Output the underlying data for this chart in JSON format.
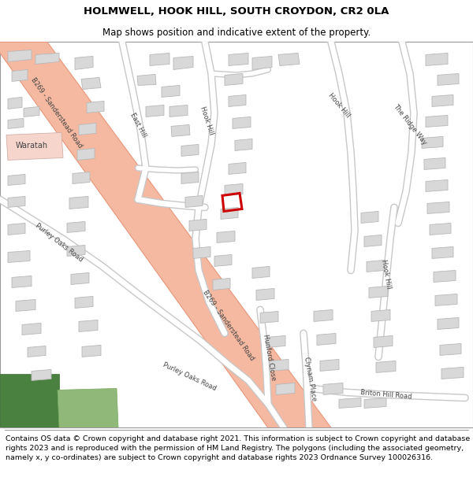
{
  "title": "HOLMWELL, HOOK HILL, SOUTH CROYDON, CR2 0LA",
  "subtitle": "Map shows position and indicative extent of the property.",
  "footer": "Contains OS data © Crown copyright and database right 2021. This information is subject to Crown copyright and database rights 2023 and is reproduced with the permission of HM Land Registry. The polygons (including the associated geometry, namely x, y co-ordinates) are subject to Crown copyright and database rights 2023 Ordnance Survey 100026316.",
  "bg_color": "#ffffff",
  "map_bg": "#f8f8f8",
  "road_main_color": "#f5b8a0",
  "road_main_edge": "#e8987a",
  "road_minor_color": "#ffffff",
  "road_minor_edge": "#c8c8c8",
  "building_fill": "#d8d8d8",
  "building_stroke": "#b8b8b8",
  "green_dark": "#4a8040",
  "green_light": "#90b878",
  "plot_stroke": "#cc0000",
  "waratah_fill": "#f5d5cc",
  "waratah_stroke": "#d0b0a8",
  "title_fontsize": 9.5,
  "subtitle_fontsize": 8.5,
  "footer_fontsize": 6.8,
  "label_color": "#444444",
  "label_fontsize": 6.0
}
